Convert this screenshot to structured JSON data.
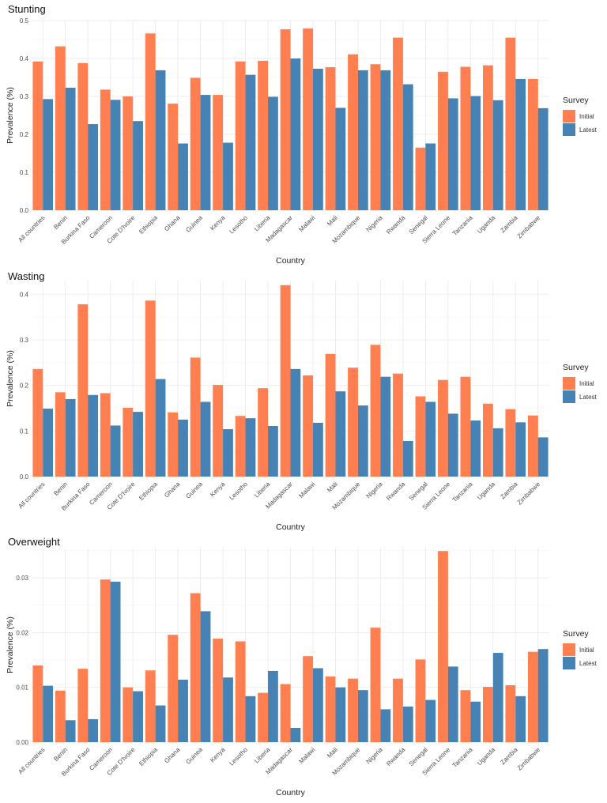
{
  "colors": {
    "initial": "#FF7F50",
    "latest": "#4682B4"
  },
  "legend": {
    "title": "Survey",
    "labels": [
      "Initial",
      "Latest"
    ]
  },
  "chart_data": [
    {
      "type": "bar",
      "title": "Stunting",
      "xlabel": "Country",
      "ylabel": "Prevalence (%)",
      "ylim": [
        0,
        0.5
      ],
      "yticks": [
        0.0,
        0.1,
        0.2,
        0.3,
        0.4,
        0.5
      ],
      "ytick_labels": [
        "0.0",
        "0.1",
        "0.2",
        "0.3",
        "0.4",
        "0.5"
      ],
      "categories": [
        "All countries",
        "Benin",
        "Burkina Faso",
        "Cameroon",
        "Cote D'Ivoire",
        "Ethiopia",
        "Ghana",
        "Guinea",
        "Kenya",
        "Lesotho",
        "Liberia",
        "Madagascar",
        "Malawi",
        "Mali",
        "Mozambique",
        "Nigeria",
        "Rwanda",
        "Senegal",
        "Sierra Leone",
        "Tanzania",
        "Uganda",
        "Zambia",
        "Zimbabwe"
      ],
      "series": [
        {
          "name": "Initial",
          "values": [
            0.392,
            0.432,
            0.388,
            0.318,
            0.3,
            0.466,
            0.281,
            0.349,
            0.304,
            0.392,
            0.394,
            0.477,
            0.479,
            0.377,
            0.411,
            0.385,
            0.455,
            0.165,
            0.365,
            0.378,
            0.382,
            0.455,
            0.346
          ]
        },
        {
          "name": "Latest",
          "values": [
            0.293,
            0.323,
            0.227,
            0.291,
            0.235,
            0.369,
            0.176,
            0.304,
            0.178,
            0.357,
            0.299,
            0.4,
            0.373,
            0.27,
            0.369,
            0.369,
            0.332,
            0.176,
            0.295,
            0.301,
            0.29,
            0.346,
            0.269
          ]
        }
      ]
    },
    {
      "type": "bar",
      "title": "Wasting",
      "xlabel": "Country",
      "ylabel": "Prevalence (%)",
      "ylim": [
        0,
        0.43
      ],
      "yticks": [
        0.0,
        0.1,
        0.2,
        0.3,
        0.4
      ],
      "ytick_labels": [
        "0.0",
        "0.1",
        "0.2",
        "0.3",
        "0.4"
      ],
      "categories": [
        "All countries",
        "Benin",
        "Burkina Faso",
        "Cameroon",
        "Cote D'Ivoire",
        "Ethiopia",
        "Ghana",
        "Guinea",
        "Kenya",
        "Lesotho",
        "Liberia",
        "Madagascar",
        "Malawi",
        "Mali",
        "Mozambique",
        "Nigeria",
        "Rwanda",
        "Senegal",
        "Sierra Leone",
        "Tanzania",
        "Uganda",
        "Zambia",
        "Zimbabwe"
      ],
      "series": [
        {
          "name": "Initial",
          "values": [
            0.236,
            0.185,
            0.378,
            0.183,
            0.151,
            0.386,
            0.141,
            0.261,
            0.201,
            0.133,
            0.194,
            0.42,
            0.222,
            0.269,
            0.239,
            0.289,
            0.226,
            0.176,
            0.212,
            0.219,
            0.16,
            0.148,
            0.134
          ]
        },
        {
          "name": "Latest",
          "values": [
            0.149,
            0.17,
            0.179,
            0.112,
            0.142,
            0.214,
            0.125,
            0.164,
            0.104,
            0.128,
            0.111,
            0.236,
            0.118,
            0.187,
            0.156,
            0.219,
            0.078,
            0.164,
            0.138,
            0.123,
            0.106,
            0.119,
            0.086
          ]
        }
      ]
    },
    {
      "type": "bar",
      "title": "Overweight",
      "xlabel": "Country",
      "ylabel": "Prevalence (%)",
      "ylim": [
        0,
        0.0355
      ],
      "yticks": [
        0.0,
        0.01,
        0.02,
        0.03
      ],
      "ytick_labels": [
        "0.00",
        "0.01",
        "0.02",
        "0.03"
      ],
      "categories": [
        "All countries",
        "Benin",
        "Burkina Faso",
        "Cameroon",
        "Cote D'Ivoire",
        "Ethiopia",
        "Ghana",
        "Guinea",
        "Kenya",
        "Lesotho",
        "Liberia",
        "Madagascar",
        "Malawi",
        "Mali",
        "Mozambique",
        "Nigeria",
        "Rwanda",
        "Senegal",
        "Sierra Leone",
        "Tanzania",
        "Uganda",
        "Zambia",
        "Zimbabwe"
      ],
      "series": [
        {
          "name": "Initial",
          "values": [
            0.014,
            0.0094,
            0.0134,
            0.0297,
            0.01,
            0.0131,
            0.0196,
            0.0272,
            0.0189,
            0.0184,
            0.009,
            0.0106,
            0.0157,
            0.012,
            0.0116,
            0.0209,
            0.0116,
            0.0151,
            0.0349,
            0.0095,
            0.0101,
            0.0104,
            0.0165
          ]
        },
        {
          "name": "Latest",
          "values": [
            0.0103,
            0.004,
            0.0042,
            0.0293,
            0.0093,
            0.0067,
            0.0114,
            0.0239,
            0.0118,
            0.0084,
            0.013,
            0.0026,
            0.0135,
            0.01,
            0.0095,
            0.006,
            0.0065,
            0.0077,
            0.0138,
            0.0074,
            0.0163,
            0.0084,
            0.017
          ]
        }
      ]
    }
  ]
}
